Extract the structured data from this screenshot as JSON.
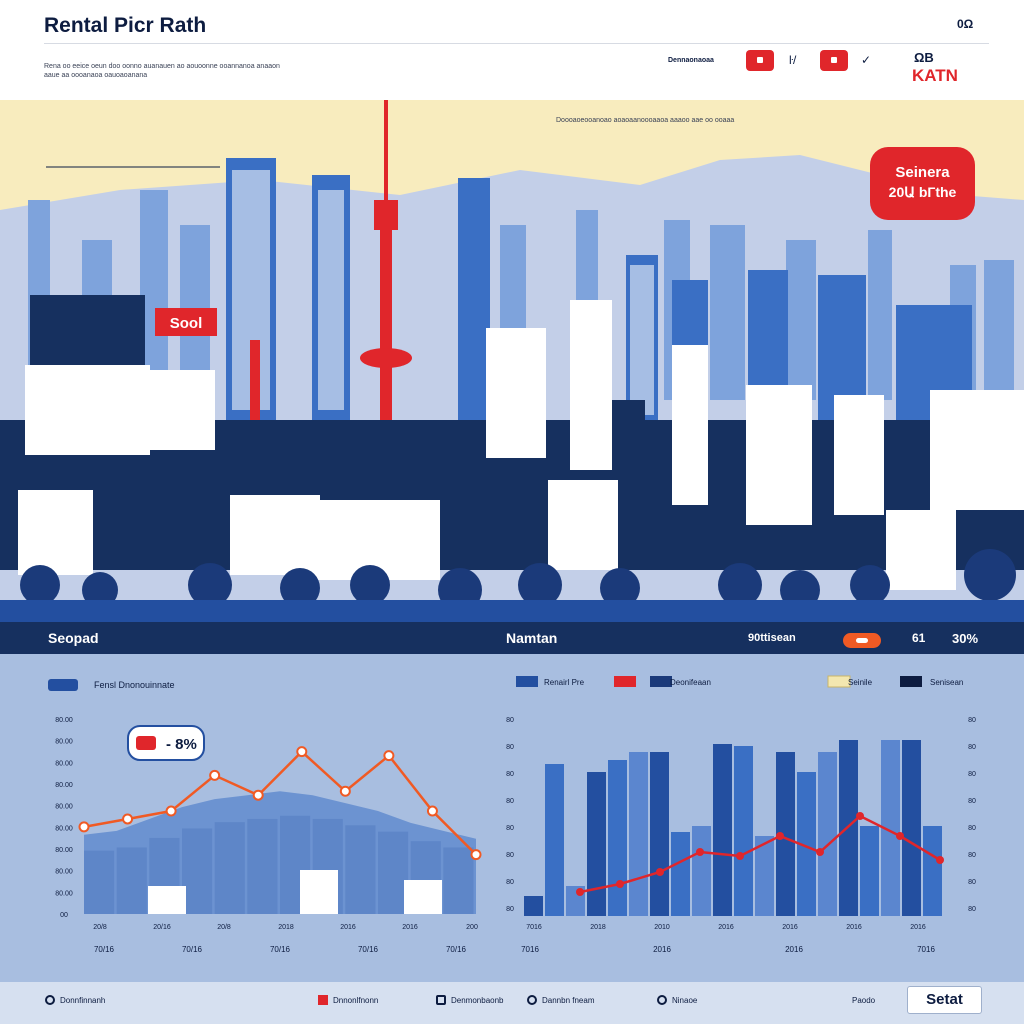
{
  "header": {
    "title": "Rental Picr Rath",
    "top_right_code": "0Ω",
    "description": "Rena oo eeice oeun doo oonno auanauen ao aouoonne ooannanoa anaaon aaue aa oooanaoa oauoaoanana",
    "controls": {
      "label": "Dennaonaoaa",
      "glyph_1": "ŀ/",
      "glyph_2": "✓"
    },
    "brand_top": "ΩΒ",
    "brand": "KATN"
  },
  "skyline": {
    "caption": "Doooaoeooanoao aoaoaanoooaaoa aaaoo aae oo ooaaa",
    "left_sign": "Sool",
    "badge": {
      "line1": "Seinera",
      "line2": "20Ա bГthe"
    }
  },
  "stats_bar": {
    "left_label": "Seopad",
    "middle_label": "Namtan",
    "right_label": "90ttisean",
    "right_code": "61",
    "right_value": "30%"
  },
  "colors": {
    "navy": "#0d1c40",
    "blue": "#234fa0",
    "mid_blue": "#3a6fc4",
    "light_blue": "#a8bee0",
    "red": "#e0262b",
    "orange": "#f05a24"
  },
  "chart_data": [
    {
      "type": "line",
      "legend": "Fensl Dnonouinnate",
      "annotation": "- 8%",
      "y_tick_labels": [
        "80.00",
        "80.00",
        "80.00",
        "80.00",
        "80.00",
        "80.00",
        "80.00",
        "80.00",
        "80.00",
        "00"
      ],
      "x_tick_labels_row1": [
        "20/8",
        "20/16",
        "20/8",
        "2018",
        "2016",
        "2016",
        "200"
      ],
      "x_tick_labels_row2": [
        "70/16",
        "70/16",
        "70/16",
        "70/16",
        "70/16"
      ],
      "x": [
        0,
        1,
        2,
        3,
        4,
        5,
        6,
        7,
        8,
        9,
        10,
        11,
        12
      ],
      "area_values": [
        40,
        42,
        48,
        54,
        58,
        60,
        62,
        60,
        56,
        52,
        46,
        42,
        38
      ],
      "line_values": [
        44,
        48,
        52,
        70,
        60,
        82,
        62,
        80,
        52,
        30
      ],
      "ylim": [
        0,
        100
      ]
    },
    {
      "type": "bar",
      "series_legend": [
        {
          "name": "Renairl Pre",
          "color": "#234fa0"
        },
        {
          "name": "",
          "color": "#e0262b"
        },
        {
          "name": "Deonifeaan",
          "color": "#1b3a7a"
        },
        {
          "name": "Seinile",
          "color": "#f3e7b0"
        },
        {
          "name": "Senisean",
          "color": "#0d1c40"
        }
      ],
      "y_tick_labels_left": [
        "80",
        "80",
        "80",
        "80",
        "80",
        "80",
        "80",
        "80"
      ],
      "y_tick_labels_right": [
        "80",
        "80",
        "80",
        "80",
        "80",
        "80",
        "80",
        "80"
      ],
      "x_tick_labels_row1": [
        "7016",
        "2018",
        "2010",
        "2016",
        "2016",
        "2016",
        "2016"
      ],
      "x_tick_labels_row2": [
        "7016",
        "2016",
        "2016",
        "7016"
      ],
      "bar_values": [
        10,
        76,
        15,
        72,
        78,
        82,
        82,
        42,
        45,
        86,
        85,
        40,
        82,
        72,
        82,
        88,
        45,
        88,
        88,
        45
      ],
      "line_values": [
        12,
        16,
        22,
        32,
        30,
        40,
        32,
        50,
        40,
        28
      ],
      "ylim": [
        0,
        100
      ]
    }
  ],
  "footer": {
    "item_1": "Donnfinnanh",
    "item_2": "Dnnonlfnonn",
    "item_3": "Denmonbaonb",
    "item_4": "Dannbn fneam",
    "item_5": "Ninaoe",
    "start_label": "Paodo",
    "start_button": "Setat"
  }
}
